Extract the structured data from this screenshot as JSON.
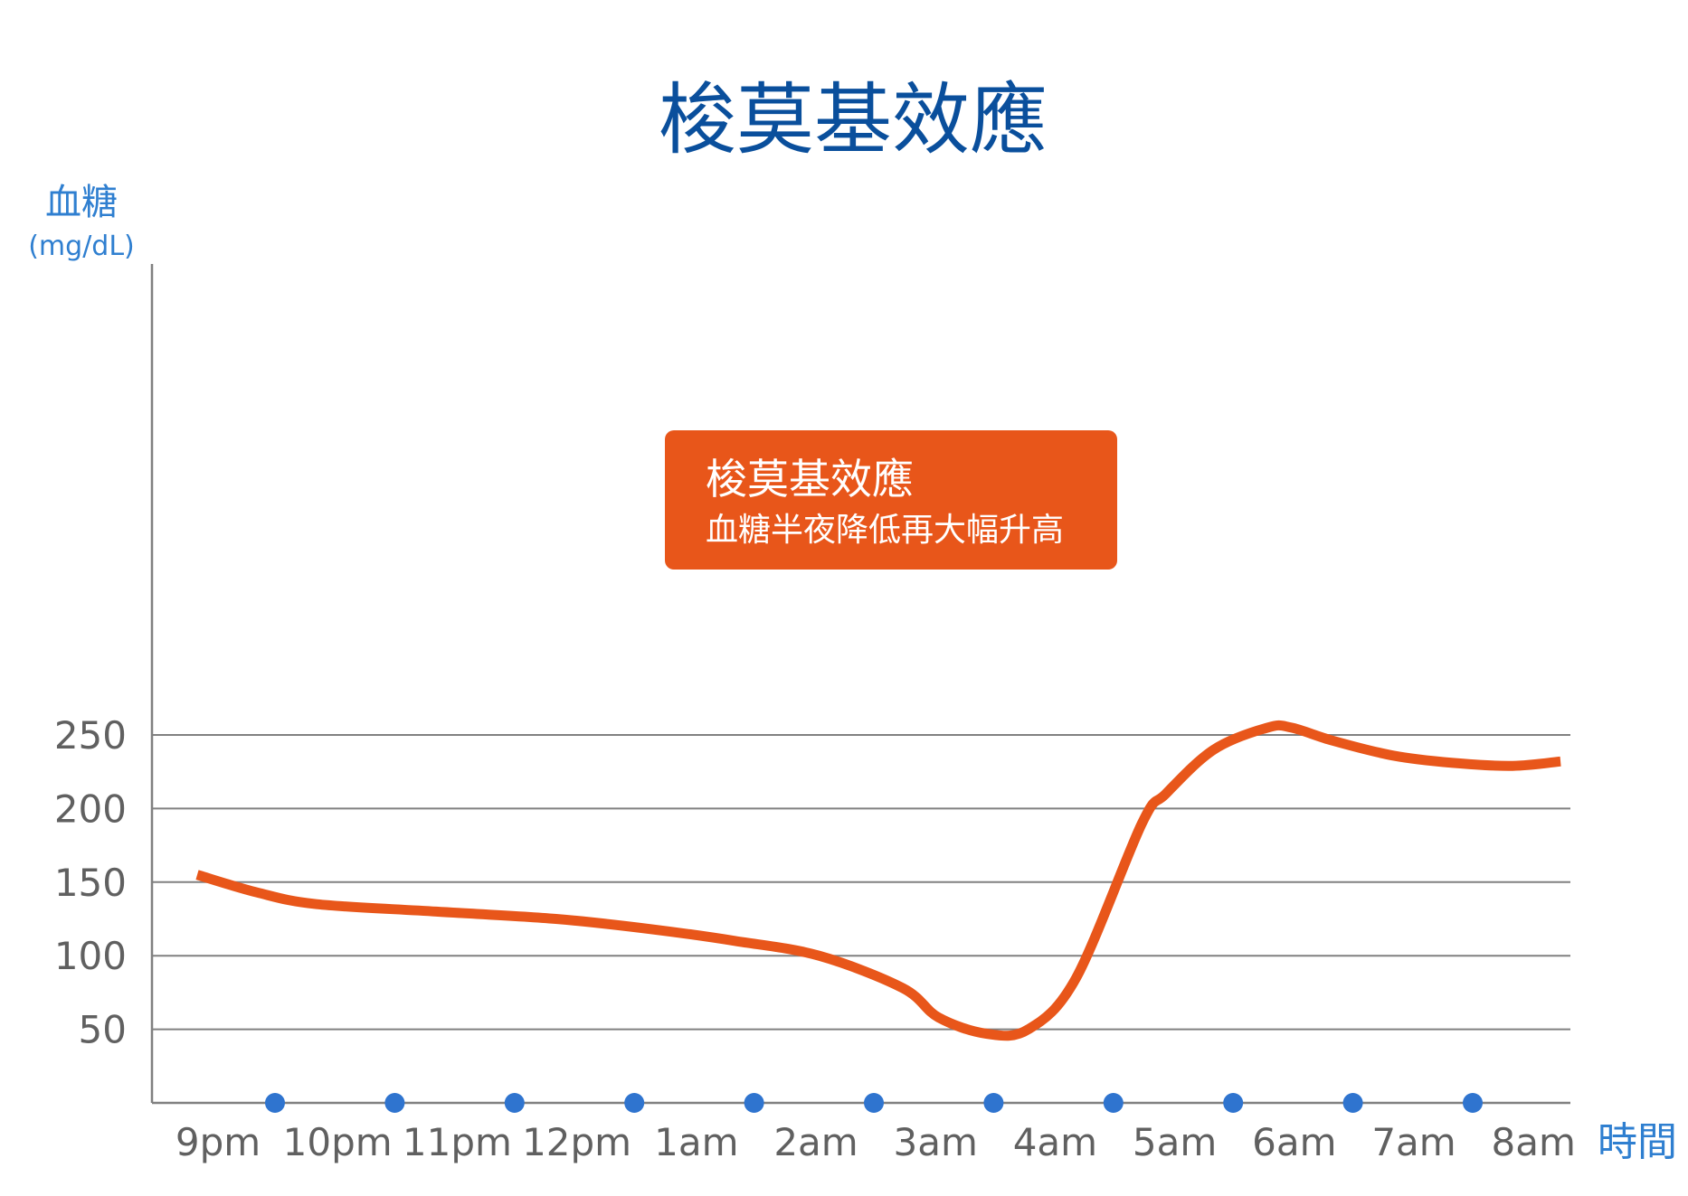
{
  "chart_data": {
    "type": "line",
    "title": "梭莫基效應",
    "ylabel": "血糖",
    "yunit": "(mg/dL)",
    "xlabel": "時間",
    "ylim": [
      0,
      280
    ],
    "yticks": [
      50,
      100,
      150,
      200,
      250
    ],
    "categories": [
      "9pm",
      "10pm",
      "11pm",
      "12pm",
      "1am",
      "2am",
      "3am",
      "4am",
      "5am",
      "6am",
      "7am",
      "8am"
    ],
    "grid": "horizontal",
    "series": [
      {
        "color": "#e8561a",
        "x": [
          0.0,
          0.5,
          1.0,
          2.0,
          3.0,
          3.8,
          4.5,
          5.2,
          5.9,
          6.2,
          6.6,
          6.95,
          7.35,
          7.9,
          8.1,
          8.5,
          8.95,
          9.15,
          9.5,
          10.0,
          10.5,
          11.0,
          11.4
        ],
        "y": [
          155,
          143,
          135,
          130,
          125,
          118,
          110,
          100,
          78,
          58,
          47,
          50,
          85,
          190,
          210,
          240,
          255,
          255,
          246,
          236,
          231,
          229,
          232
        ]
      }
    ],
    "annotation": {
      "title": "梭莫基效應",
      "text": "血糖半夜降低再大幅升高"
    }
  }
}
